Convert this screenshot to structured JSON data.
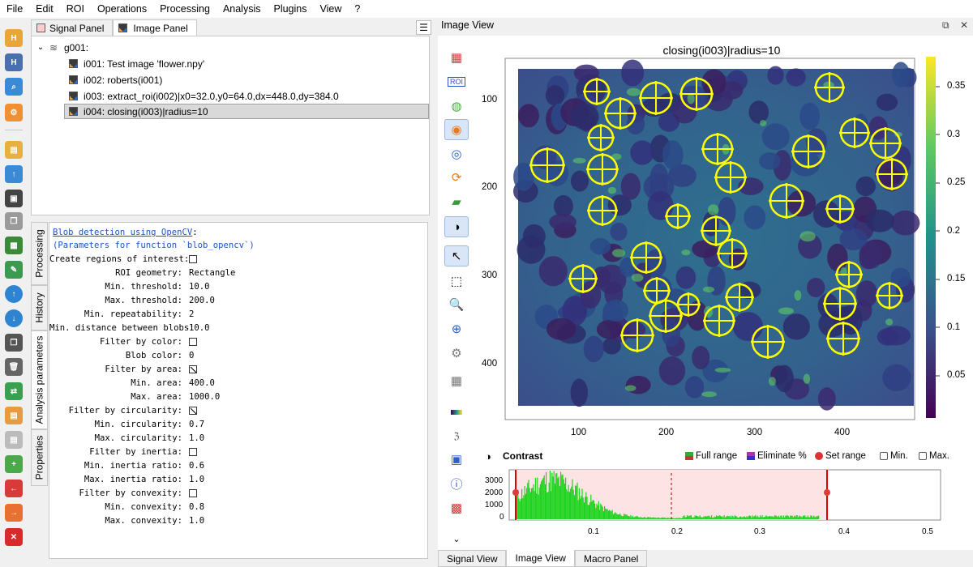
{
  "menu": [
    "File",
    "Edit",
    "ROI",
    "Operations",
    "Processing",
    "Analysis",
    "Plugins",
    "View",
    "?"
  ],
  "left_panel": {
    "tabs": [
      {
        "label": "Signal Panel",
        "icon": "signal-panel-icon"
      },
      {
        "label": "Image Panel",
        "icon": "image-panel-icon"
      }
    ],
    "tree": {
      "group": "g001:",
      "items": [
        "i001: Test image 'flower.npy'",
        "i002: roberts(i001)",
        "i003: extract_roi(i002)|x0=32.0,y0=64.0,dx=448.0,dy=384.0",
        "i004: closing(i003)|radius=10"
      ],
      "selected_index": 3
    },
    "vertical_tabs": [
      "Processing",
      "History",
      "Analysis parameters",
      "Properties"
    ],
    "active_vertical_tab": "Analysis parameters"
  },
  "parameters": {
    "title": "Blob detection using OpenCV",
    "title_suffix": ":",
    "subtitle": "(Parameters for function `blob_opencv`)",
    "rows": [
      {
        "label": "Create regions of interest:",
        "checkbox": false
      },
      {
        "label": "ROI geometry:",
        "value": "Rectangle"
      },
      {
        "label": "Min. threshold:",
        "value": "10.0"
      },
      {
        "label": "Max. threshold:",
        "value": "200.0"
      },
      {
        "label": "Min. repeatability:",
        "value": "2"
      },
      {
        "label": "Min. distance between blobs:",
        "value": "10.0"
      },
      {
        "label": "Filter by color:",
        "checkbox": false
      },
      {
        "label": "Blob color:",
        "value": "0"
      },
      {
        "label": "Filter by area:",
        "checkbox": true
      },
      {
        "label": "Min. area:",
        "value": "400.0"
      },
      {
        "label": "Max. area:",
        "value": "1000.0"
      },
      {
        "label": "Filter by circularity:",
        "checkbox": true
      },
      {
        "label": "Min. circularity:",
        "value": "0.7"
      },
      {
        "label": "Max. circularity:",
        "value": "1.0"
      },
      {
        "label": "Filter by inertia:",
        "checkbox": false
      },
      {
        "label": "Min. inertia ratio:",
        "value": "0.6"
      },
      {
        "label": "Max. inertia ratio:",
        "value": "1.0"
      },
      {
        "label": "Filter by convexity:",
        "checkbox": false
      },
      {
        "label": "Min. convexity:",
        "value": "0.8"
      },
      {
        "label": "Max. convexity:",
        "value": "1.0"
      }
    ]
  },
  "image_view": {
    "title": "Image View",
    "plot_title": "closing(i003)|radius=10",
    "x_ticks": [
      "100",
      "200",
      "300",
      "400"
    ],
    "y_ticks": [
      "100",
      "200",
      "300",
      "400"
    ],
    "colorbar_ticks": [
      "0.35",
      "0.3",
      "0.25",
      "0.2",
      "0.15",
      "0.1",
      "0.05"
    ],
    "colormap": "viridis",
    "marker_color": "#ffff00"
  },
  "contrast": {
    "title": "Contrast",
    "buttons": [
      "Full range",
      "Eliminate %",
      "Set range",
      "Min.",
      "Max."
    ],
    "y_ticks": [
      "3000",
      "2000",
      "1000",
      "0"
    ],
    "x_ticks": [
      "0.1",
      "0.2",
      "0.3",
      "0.4",
      "0.5"
    ],
    "range": [
      0.0,
      0.38
    ]
  },
  "bottom_tabs": [
    "Signal View",
    "Image View",
    "Macro Panel"
  ],
  "active_bottom_tab": "Image View"
}
